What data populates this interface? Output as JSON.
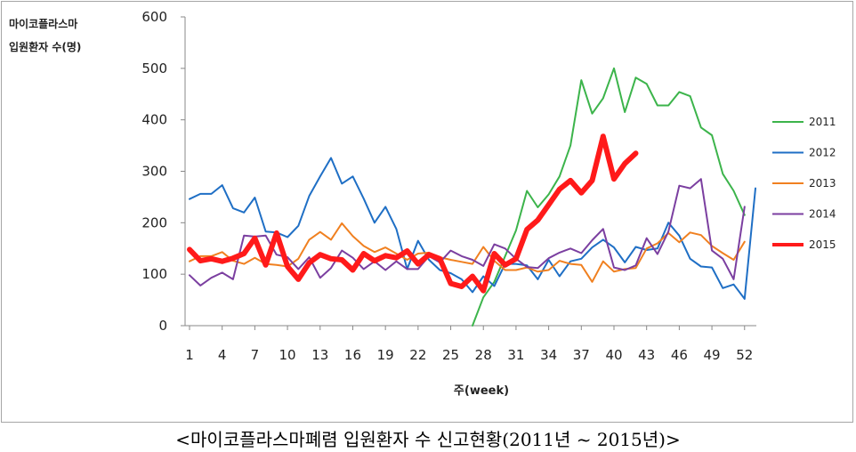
{
  "caption": "<마이코플라스마폐렴 입원환자 수 신고현황(2011년 ~ 2015년)>",
  "chart_data": {
    "type": "line",
    "title": "",
    "ylabel": "마이코플라스마\n입원환자 수(명)",
    "xlabel": "주(week)",
    "ylim": [
      0,
      600
    ],
    "yticks": [
      0,
      100,
      200,
      300,
      400,
      500,
      600
    ],
    "xlim": [
      1,
      53
    ],
    "xticks": [
      1,
      4,
      7,
      10,
      13,
      16,
      19,
      22,
      25,
      28,
      31,
      34,
      37,
      40,
      43,
      46,
      49,
      52
    ],
    "grid": false,
    "legend_position": "right",
    "series": [
      {
        "name": "2011",
        "color": "#3cb44b",
        "width": 2,
        "x": [
          27,
          28,
          29,
          30,
          31,
          32,
          33,
          34,
          35,
          36,
          37,
          38,
          39,
          40,
          41,
          42,
          43,
          44,
          45,
          46,
          47,
          48,
          49,
          50,
          51,
          52
        ],
        "values": [
          0,
          55,
          85,
          135,
          185,
          262,
          230,
          255,
          290,
          350,
          477,
          412,
          442,
          500,
          415,
          482,
          470,
          428,
          428,
          454,
          446,
          385,
          370,
          295,
          262,
          215
        ]
      },
      {
        "name": "2012",
        "color": "#1f6fc5",
        "width": 2,
        "x": [
          1,
          2,
          3,
          4,
          5,
          6,
          7,
          8,
          9,
          10,
          11,
          12,
          13,
          14,
          15,
          16,
          17,
          18,
          19,
          20,
          21,
          22,
          23,
          24,
          25,
          26,
          27,
          28,
          29,
          30,
          31,
          32,
          33,
          34,
          35,
          36,
          37,
          38,
          39,
          40,
          41,
          42,
          43,
          44,
          45,
          46,
          47,
          48,
          49,
          50,
          51,
          52,
          53
        ],
        "values": [
          246,
          256,
          256,
          273,
          228,
          220,
          249,
          183,
          181,
          172,
          194,
          252,
          290,
          326,
          276,
          290,
          247,
          200,
          231,
          188,
          110,
          165,
          128,
          108,
          102,
          90,
          65,
          96,
          77,
          120,
          120,
          117,
          90,
          128,
          96,
          125,
          130,
          152,
          167,
          152,
          123,
          153,
          147,
          150,
          200,
          175,
          130,
          115,
          113,
          73,
          80,
          52,
          267
        ]
      },
      {
        "name": "2013",
        "color": "#f08020",
        "width": 2,
        "x": [
          1,
          2,
          3,
          4,
          5,
          6,
          7,
          8,
          9,
          10,
          11,
          12,
          13,
          14,
          15,
          16,
          17,
          18,
          19,
          20,
          21,
          22,
          23,
          24,
          25,
          26,
          27,
          28,
          29,
          30,
          31,
          32,
          33,
          34,
          35,
          36,
          37,
          38,
          39,
          40,
          41,
          42,
          43,
          44,
          45,
          46,
          47,
          48,
          49,
          50,
          51,
          52
        ],
        "values": [
          125,
          135,
          135,
          143,
          126,
          120,
          132,
          120,
          118,
          115,
          130,
          167,
          182,
          167,
          199,
          174,
          155,
          143,
          152,
          140,
          128,
          140,
          142,
          133,
          128,
          124,
          120,
          153,
          126,
          108,
          108,
          113,
          105,
          108,
          126,
          120,
          118,
          85,
          125,
          105,
          110,
          112,
          150,
          160,
          180,
          162,
          181,
          176,
          155,
          141,
          128,
          163
        ]
      },
      {
        "name": "2014",
        "color": "#7b3fa0",
        "width": 2,
        "x": [
          1,
          2,
          3,
          4,
          5,
          6,
          7,
          8,
          9,
          10,
          11,
          12,
          13,
          14,
          15,
          16,
          17,
          18,
          19,
          20,
          21,
          22,
          23,
          24,
          25,
          26,
          27,
          28,
          29,
          30,
          31,
          32,
          33,
          34,
          35,
          36,
          37,
          38,
          39,
          40,
          41,
          42,
          43,
          44,
          45,
          46,
          47,
          48,
          49,
          50,
          51,
          52
        ],
        "values": [
          98,
          78,
          93,
          103,
          90,
          175,
          173,
          175,
          138,
          133,
          110,
          133,
          93,
          112,
          146,
          132,
          110,
          125,
          108,
          125,
          110,
          110,
          135,
          123,
          146,
          135,
          128,
          116,
          158,
          150,
          130,
          114,
          112,
          131,
          142,
          150,
          141,
          166,
          188,
          113,
          108,
          117,
          170,
          139,
          183,
          272,
          267,
          285,
          146,
          130,
          90,
          231
        ]
      },
      {
        "name": "2015",
        "color": "#ff1a1a",
        "width": 6,
        "x": [
          1,
          2,
          3,
          4,
          5,
          6,
          7,
          8,
          9,
          10,
          11,
          12,
          13,
          14,
          15,
          16,
          17,
          18,
          19,
          20,
          21,
          22,
          23,
          24,
          25,
          26,
          27,
          28,
          29,
          30,
          31,
          32,
          33,
          34,
          35,
          36,
          37,
          38,
          39,
          40,
          41,
          42
        ],
        "values": [
          148,
          126,
          130,
          125,
          131,
          140,
          170,
          118,
          180,
          115,
          90,
          122,
          138,
          130,
          128,
          108,
          140,
          126,
          136,
          132,
          145,
          120,
          138,
          130,
          82,
          76,
          96,
          68,
          140,
          118,
          130,
          187,
          205,
          235,
          265,
          282,
          258,
          282,
          368,
          285,
          315,
          335
        ]
      }
    ]
  }
}
